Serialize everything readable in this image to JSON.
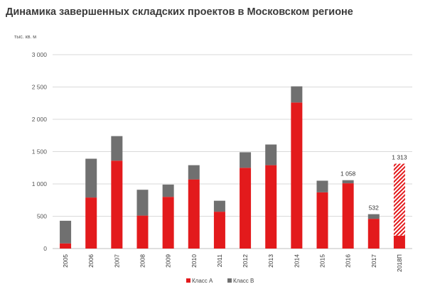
{
  "chart_data": {
    "type": "bar",
    "stacked": true,
    "title": "Динамика завершенных складских проектов в Московском регионе",
    "ylabel": "тыс. кв. м",
    "ylim": [
      0,
      3000
    ],
    "yticks": [
      0,
      500,
      1000,
      1500,
      2000,
      2500,
      3000
    ],
    "ytick_labels": [
      "0",
      "500",
      "1 000",
      "1 500",
      "2 000",
      "2 500",
      "3 000"
    ],
    "grid": true,
    "legend_position": "bottom-center",
    "categories": [
      "2005",
      "2006",
      "2007",
      "2008",
      "2009",
      "2010",
      "2011",
      "2012",
      "2013",
      "2014",
      "2015",
      "2016",
      "2017",
      "2018П"
    ],
    "series": [
      {
        "name": "Класс А",
        "color": "#e31a1c",
        "values": [
          80,
          790,
          1360,
          510,
          800,
          1070,
          570,
          1250,
          1290,
          2260,
          870,
          1010,
          460,
          200
        ]
      },
      {
        "name": "Класс В",
        "color": "#707070",
        "values": [
          350,
          600,
          380,
          400,
          190,
          220,
          170,
          240,
          320,
          250,
          180,
          48,
          72,
          0
        ]
      }
    ],
    "forecast": {
      "category": "2018П",
      "value": 1113,
      "pattern": "red-hatched"
    },
    "data_labels": [
      {
        "category": "2016",
        "text": "1 058"
      },
      {
        "category": "2017",
        "text": "532"
      },
      {
        "category": "2018П",
        "text": "1 313"
      }
    ]
  }
}
